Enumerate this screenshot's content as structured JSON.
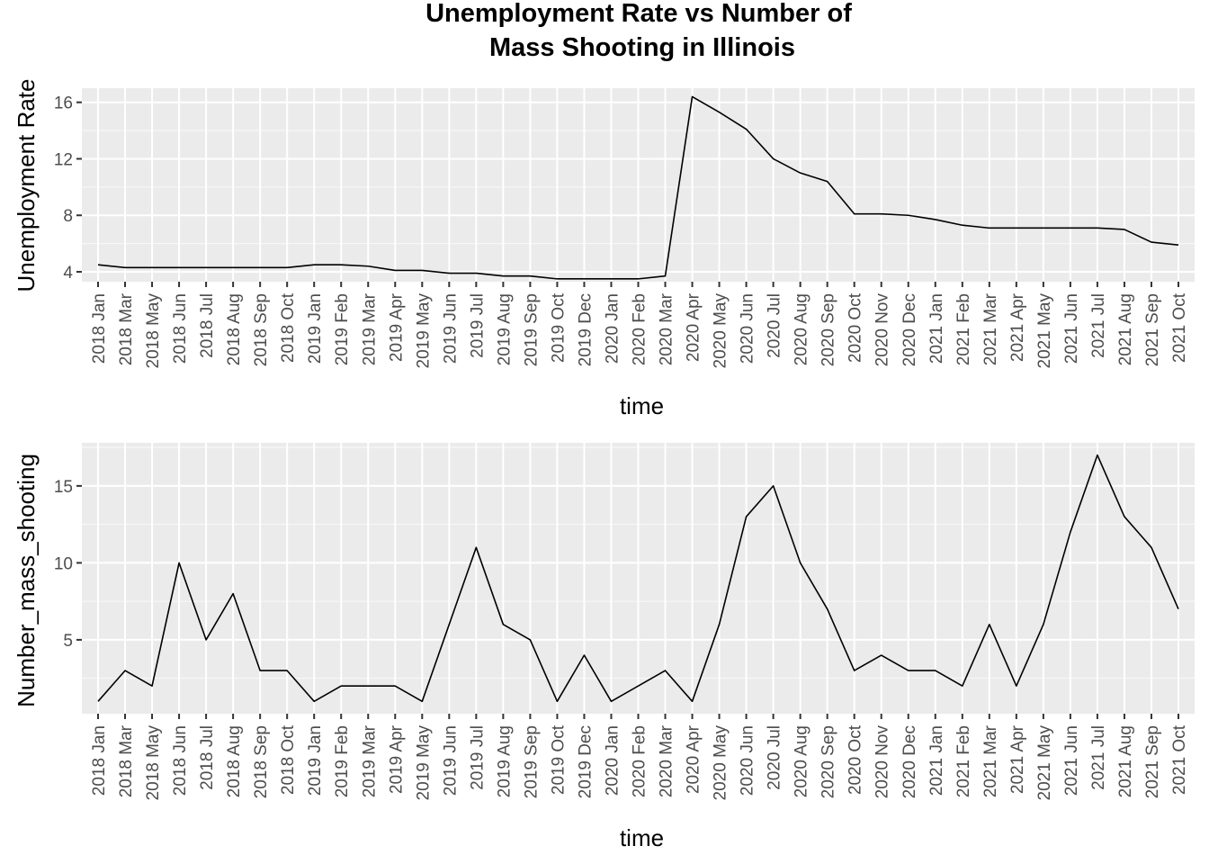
{
  "title_line1": "Unemployment Rate vs Number of",
  "title_line2": "Mass Shooting in Illinois",
  "chart_data": [
    {
      "type": "line",
      "xlabel": "time",
      "ylabel": "Unemployment Rate",
      "ylim": [
        3.3,
        17.0
      ],
      "y_ticks": [
        4,
        8,
        12,
        16
      ],
      "grid": true,
      "categories": [
        "2018 Jan",
        "2018 Mar",
        "2018 May",
        "2018 Jun",
        "2018 Jul",
        "2018 Aug",
        "2018 Sep",
        "2018 Oct",
        "2019 Jan",
        "2019 Feb",
        "2019 Mar",
        "2019 Apr",
        "2019 May",
        "2019 Jun",
        "2019 Jul",
        "2019 Aug",
        "2019 Sep",
        "2019 Oct",
        "2019 Dec",
        "2020 Jan",
        "2020 Feb",
        "2020 Mar",
        "2020 Apr",
        "2020 May",
        "2020 Jun",
        "2020 Jul",
        "2020 Aug",
        "2020 Sep",
        "2020 Oct",
        "2020 Nov",
        "2020 Dec",
        "2021 Jan",
        "2021 Feb",
        "2021 Mar",
        "2021 Apr",
        "2021 May",
        "2021 Jun",
        "2021 Jul",
        "2021 Aug",
        "2021 Sep",
        "2021 Oct"
      ],
      "values": [
        4.5,
        4.3,
        4.3,
        4.3,
        4.3,
        4.3,
        4.3,
        4.3,
        4.5,
        4.5,
        4.4,
        4.1,
        4.1,
        3.9,
        3.9,
        3.7,
        3.7,
        3.5,
        3.5,
        3.5,
        3.5,
        3.7,
        16.4,
        15.3,
        14.1,
        12.0,
        11.0,
        10.4,
        8.1,
        8.1,
        8.0,
        7.7,
        7.3,
        7.1,
        7.1,
        7.1,
        7.1,
        7.1,
        7.0,
        6.1,
        5.9
      ]
    },
    {
      "type": "line",
      "xlabel": "time",
      "ylabel": "Number_mass_shooting",
      "ylim": [
        0.2,
        17.8
      ],
      "y_ticks": [
        5,
        10,
        15
      ],
      "grid": true,
      "categories": [
        "2018 Jan",
        "2018 Mar",
        "2018 May",
        "2018 Jun",
        "2018 Jul",
        "2018 Aug",
        "2018 Sep",
        "2018 Oct",
        "2019 Jan",
        "2019 Feb",
        "2019 Mar",
        "2019 Apr",
        "2019 May",
        "2019 Jun",
        "2019 Jul",
        "2019 Aug",
        "2019 Sep",
        "2019 Oct",
        "2019 Dec",
        "2020 Jan",
        "2020 Feb",
        "2020 Mar",
        "2020 Apr",
        "2020 May",
        "2020 Jun",
        "2020 Jul",
        "2020 Aug",
        "2020 Sep",
        "2020 Oct",
        "2020 Nov",
        "2020 Dec",
        "2021 Jan",
        "2021 Feb",
        "2021 Mar",
        "2021 Apr",
        "2021 May",
        "2021 Jun",
        "2021 Jul",
        "2021 Aug",
        "2021 Sep",
        "2021 Oct"
      ],
      "values": [
        1,
        3,
        2,
        10,
        5,
        8,
        3,
        3,
        1,
        2,
        2,
        2,
        1,
        6,
        11,
        6,
        5,
        1,
        4,
        1,
        2,
        3,
        1,
        6,
        13,
        15,
        10,
        7,
        3,
        4,
        3,
        3,
        2,
        6,
        2,
        6,
        12,
        17,
        13,
        11,
        7
      ]
    }
  ]
}
